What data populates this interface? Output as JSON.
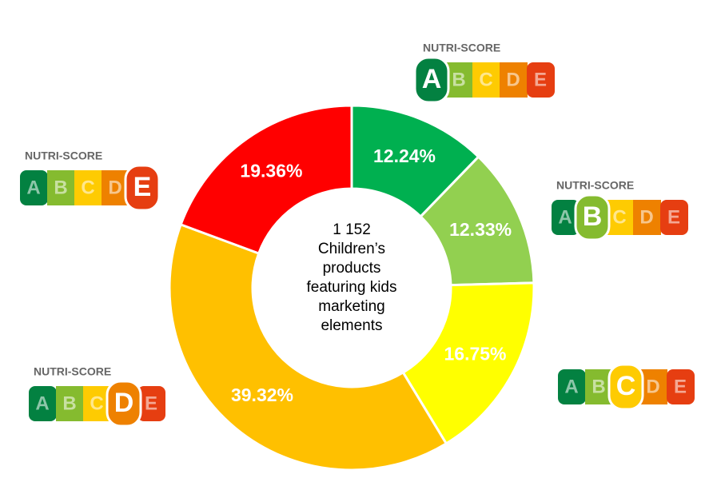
{
  "chart_data": {
    "type": "donut",
    "categories": [
      "A",
      "B",
      "C",
      "D",
      "E"
    ],
    "values": [
      12.24,
      12.33,
      16.75,
      39.32,
      19.36
    ],
    "value_labels": [
      "12.24%",
      "12.33%",
      "16.75%",
      "39.32%",
      "19.36%"
    ],
    "colors": [
      "#00b050",
      "#92d050",
      "#ffff00",
      "#ffc000",
      "#ff0000"
    ],
    "center_text": [
      "1 152",
      "Children’s",
      "products",
      "featuring kids",
      "marketing",
      "elements"
    ],
    "badge_titles": [
      "NUTRI-SCORE",
      "NUTRI-SCORE",
      null,
      "NUTRI-SCORE",
      "NUTRI-SCORE"
    ],
    "badge_colors": [
      "#038141",
      "#85bb2f",
      "#fecb02",
      "#ee8100",
      "#e63e11"
    ]
  }
}
